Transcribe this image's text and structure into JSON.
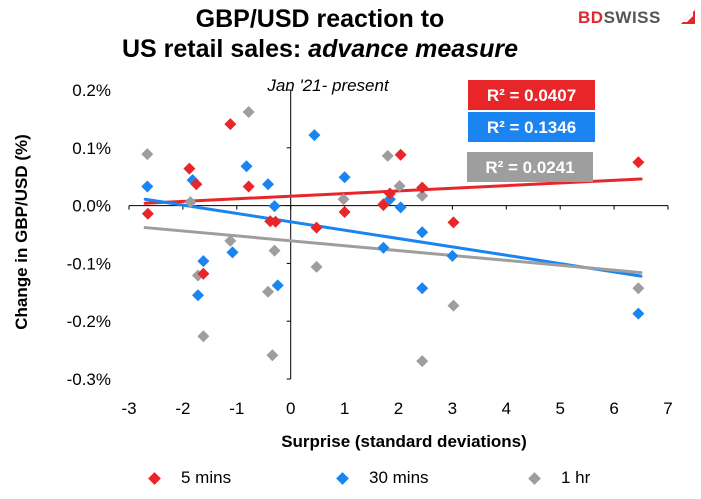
{
  "title": {
    "line1": "GBP/USD reaction to",
    "line2_plain": "US retail sales: ",
    "line2_italic": "advance measure",
    "subtitle": "Jan '21- present"
  },
  "brand": {
    "part1": "BD",
    "part2": "SWISS"
  },
  "chart_data": {
    "type": "scatter",
    "xlabel": "Surprise (standard deviations)",
    "ylabel": "Change in GBP/USD  (%)",
    "xlim": [
      -3,
      7
    ],
    "ylim": [
      -0.3,
      0.2
    ],
    "x_ticks": [
      "-3",
      "-2",
      "-1",
      "0",
      "1",
      "2",
      "3",
      "4",
      "5",
      "6",
      "7"
    ],
    "y_ticks": [
      "0.2%",
      "0.1%",
      "0.0%",
      "-0.1%",
      "-0.2%",
      "-0.3%"
    ],
    "x_tick_values": [
      -3,
      -2,
      -1,
      0,
      1,
      2,
      3,
      4,
      5,
      6,
      7
    ],
    "y_tick_values": [
      0.2,
      0.1,
      0.0,
      -0.1,
      -0.2,
      -0.3
    ],
    "grid": false,
    "legend_position": "bottom",
    "series": [
      {
        "name": "5 mins",
        "color": "#e8262a",
        "r2_label": "R² = 0.0407",
        "trend": [
          [
            -2.7,
            0.004
          ],
          [
            6.5,
            0.046
          ]
        ],
        "points": [
          [
            -2.65,
            -0.014
          ],
          [
            -1.88,
            0.064
          ],
          [
            -1.75,
            0.037
          ],
          [
            -1.62,
            -0.118
          ],
          [
            -1.12,
            0.141
          ],
          [
            -0.78,
            0.033
          ],
          [
            -0.38,
            -0.027
          ],
          [
            -0.28,
            -0.028
          ],
          [
            0.48,
            -0.038
          ],
          [
            1.0,
            -0.011
          ],
          [
            1.72,
            0.001
          ],
          [
            1.84,
            0.021
          ],
          [
            2.04,
            0.088
          ],
          [
            2.44,
            0.031
          ],
          [
            3.02,
            -0.029
          ],
          [
            6.45,
            0.075
          ]
        ]
      },
      {
        "name": "30 mins",
        "color": "#1a84f0",
        "r2_label": "R² = 0.1346",
        "trend": [
          [
            -2.7,
            0.011
          ],
          [
            6.5,
            -0.122
          ]
        ],
        "points": [
          [
            -2.66,
            0.033
          ],
          [
            -1.82,
            0.044
          ],
          [
            -1.72,
            -0.155
          ],
          [
            -1.62,
            -0.096
          ],
          [
            -1.08,
            -0.081
          ],
          [
            -0.82,
            0.068
          ],
          [
            -0.42,
            0.037
          ],
          [
            -0.3,
            -0.001
          ],
          [
            -0.24,
            -0.138
          ],
          [
            0.44,
            0.122
          ],
          [
            1.0,
            0.049
          ],
          [
            1.72,
            -0.073
          ],
          [
            1.84,
            0.011
          ],
          [
            2.04,
            -0.003
          ],
          [
            2.44,
            -0.046
          ],
          [
            2.44,
            -0.143
          ],
          [
            3.0,
            -0.087
          ],
          [
            6.45,
            -0.187
          ]
        ]
      },
      {
        "name": "1 hr",
        "color": "#9e9e9e",
        "r2_label": "R² = 0.0241",
        "trend": [
          [
            -2.7,
            -0.038
          ],
          [
            6.5,
            -0.116
          ]
        ],
        "points": [
          [
            -2.66,
            0.089
          ],
          [
            -1.86,
            0.006
          ],
          [
            -1.72,
            -0.121
          ],
          [
            -1.62,
            -0.226
          ],
          [
            -1.12,
            -0.061
          ],
          [
            -0.78,
            0.162
          ],
          [
            -0.42,
            -0.149
          ],
          [
            -0.34,
            -0.259
          ],
          [
            -0.3,
            -0.078
          ],
          [
            0.48,
            -0.106
          ],
          [
            0.98,
            0.011
          ],
          [
            1.72,
            0.003
          ],
          [
            1.8,
            0.086
          ],
          [
            2.02,
            0.034
          ],
          [
            2.44,
            0.017
          ],
          [
            2.44,
            -0.269
          ],
          [
            3.02,
            -0.173
          ],
          [
            6.45,
            -0.143
          ]
        ]
      }
    ]
  }
}
